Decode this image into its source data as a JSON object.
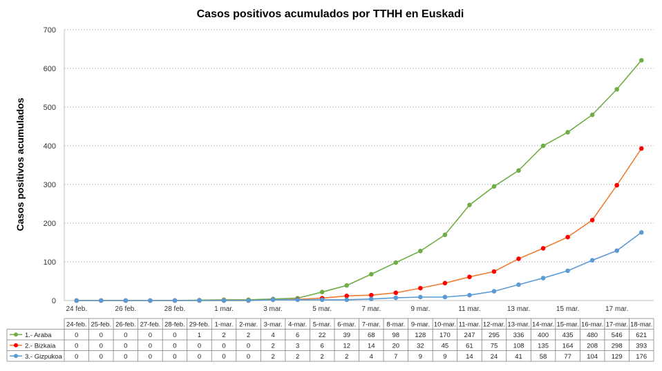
{
  "chart_data": {
    "type": "line",
    "title": "Casos positivos acumulados por TTHH en Euskadi",
    "ylabel": "Casos positivos acumulados",
    "xlabel": "",
    "ylim": [
      0,
      700
    ],
    "yticks": [
      0,
      100,
      200,
      300,
      400,
      500,
      600,
      700
    ],
    "grid": true,
    "legend": "data-table-bottom",
    "axis_labels": [
      "24 feb.",
      "26 feb.",
      "28 feb.",
      "1 mar.",
      "3 mar.",
      "5 mar.",
      "7 mar.",
      "9 mar.",
      "11 mar.",
      "13 mar.",
      "15 mar.",
      "17 mar."
    ],
    "categories": [
      "24-feb.",
      "25-feb.",
      "26-feb.",
      "27-feb.",
      "28-feb.",
      "29-feb.",
      "1-mar.",
      "2-mar.",
      "3-mar.",
      "4-mar.",
      "5-mar.",
      "6-mar.",
      "7-mar.",
      "8-mar.",
      "9-mar.",
      "10-mar.",
      "11-mar.",
      "12-mar.",
      "13-mar.",
      "14-mar.",
      "15-mar.",
      "16-mar.",
      "17-mar.",
      "18-mar."
    ],
    "series": [
      {
        "name": "1.- Araba",
        "color": "#70ad47",
        "values": [
          0,
          0,
          0,
          0,
          0,
          1,
          2,
          2,
          4,
          6,
          22,
          39,
          68,
          98,
          128,
          170,
          247,
          295,
          336,
          400,
          435,
          480,
          546,
          621
        ]
      },
      {
        "name": "2.- Bizkaia",
        "color": "#ed7d31",
        "marker_color": "#ff0000",
        "values": [
          0,
          0,
          0,
          0,
          0,
          0,
          0,
          0,
          2,
          3,
          6,
          12,
          14,
          20,
          32,
          45,
          61,
          75,
          108,
          135,
          164,
          208,
          298,
          393
        ]
      },
      {
        "name": "3.- Gizpukoa",
        "color": "#5b9bd5",
        "values": [
          0,
          0,
          0,
          0,
          0,
          0,
          0,
          0,
          2,
          2,
          2,
          2,
          4,
          7,
          9,
          9,
          14,
          24,
          41,
          58,
          77,
          104,
          129,
          176
        ]
      }
    ]
  }
}
